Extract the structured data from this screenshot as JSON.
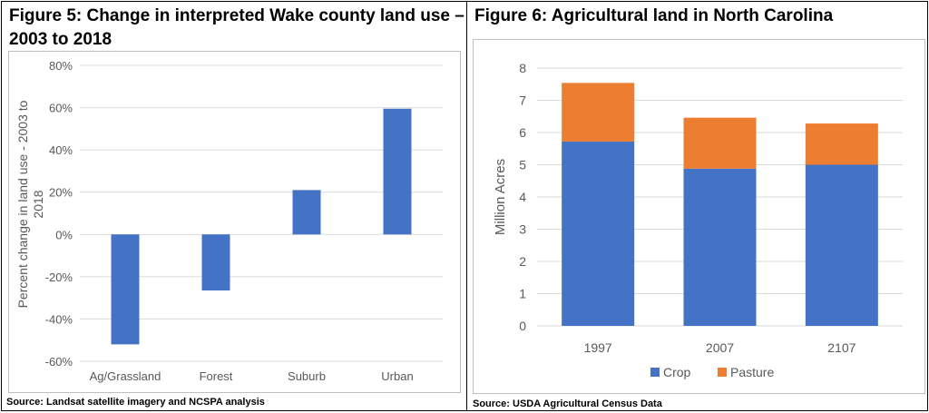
{
  "figures": [
    {
      "title_line1": "Figure 5: Change in interpreted Wake county land use –",
      "title_line2": "2003 to 2018",
      "source": "Source: Landsat satellite imagery and NCSPA analysis"
    },
    {
      "title": "Figure 6: Agricultural land in North Carolina",
      "source": "Source: USDA Agricultural Census Data"
    }
  ],
  "chart_data": [
    {
      "type": "bar",
      "categories": [
        "Ag/Grassland",
        "Forest",
        "Suburb",
        "Urban"
      ],
      "values": [
        -0.52,
        -0.265,
        0.21,
        0.595
      ],
      "ylabel": "Percent change in land use - 2003 to 2018",
      "ylim": [
        -0.6,
        0.8
      ],
      "yticks": [
        -0.6,
        -0.4,
        -0.2,
        0,
        0.2,
        0.4,
        0.6,
        0.8
      ],
      "ytick_labels": [
        "-60%",
        "-40%",
        "-20%",
        "0%",
        "20%",
        "40%",
        "60%",
        "80%"
      ],
      "grid": true,
      "colors": {
        "bar": "#4472c4",
        "grid": "#d9d9d9",
        "axis_text": "#595959"
      }
    },
    {
      "type": "bar",
      "stacked": true,
      "categories": [
        "1997",
        "2007",
        "2107"
      ],
      "series": [
        {
          "name": "Crop",
          "values": [
            5.72,
            4.88,
            5.0
          ],
          "color": "#4472c4"
        },
        {
          "name": "Pasture",
          "values": [
            1.82,
            1.58,
            1.28
          ],
          "color": "#ed7d31"
        }
      ],
      "ylabel": "Million Acres",
      "ylim": [
        0,
        8
      ],
      "yticks": [
        0,
        1,
        2,
        3,
        4,
        5,
        6,
        7,
        8
      ],
      "grid": true,
      "legend": "bottom",
      "colors": {
        "grid": "#d9d9d9",
        "axis_text": "#595959"
      }
    }
  ]
}
